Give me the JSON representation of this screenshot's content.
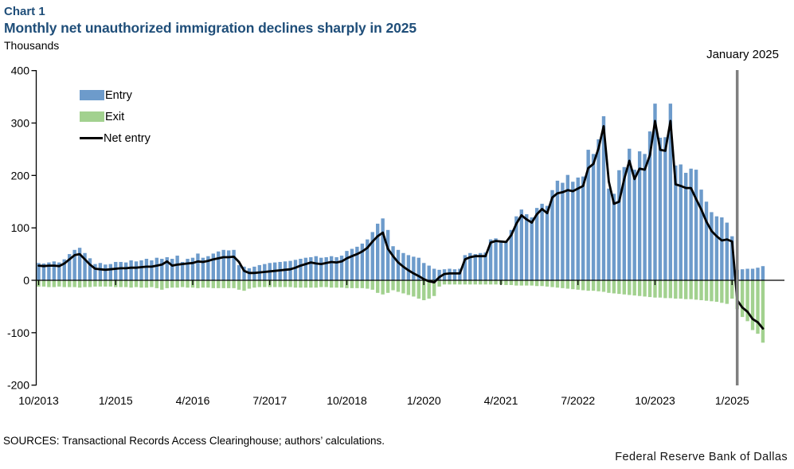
{
  "header": {
    "chart_label": "Chart 1",
    "title": "Monthly net unauthorized immigration declines sharply in 2025",
    "units_label": "Thousands",
    "title_color": "#1F4E79"
  },
  "annotation": {
    "label": "January 2025",
    "line_month_index": 136,
    "line_color": "#7F7F7F"
  },
  "footer": {
    "sources": "SOURCES: Transactional Records Access Clearinghouse; authors’ calculations.",
    "brand": "Federal Reserve Bank of Dallas"
  },
  "chart_data": {
    "type": "bar",
    "subtype": "monthly stacked entry/exit bars with net line overlay",
    "title": "Monthly net unauthorized immigration declines sharply in 2025",
    "ylabel": "Thousands",
    "ylim": [
      -200,
      400
    ],
    "y_ticks": [
      400,
      300,
      200,
      100,
      0,
      -100,
      -200
    ],
    "x_start_month": "10/2013",
    "x_end_month": "7/2025",
    "x_ticks": [
      {
        "label": "10/2013",
        "m": 0
      },
      {
        "label": "1/2015",
        "m": 15
      },
      {
        "label": "4/2016",
        "m": 30
      },
      {
        "label": "7/2017",
        "m": 45
      },
      {
        "label": "10/2018",
        "m": 60
      },
      {
        "label": "1/2020",
        "m": 75
      },
      {
        "label": "4/2021",
        "m": 90
      },
      {
        "label": "7/2022",
        "m": 105
      },
      {
        "label": "10/2023",
        "m": 120
      },
      {
        "label": "1/2025",
        "m": 135
      }
    ],
    "series": {
      "entry": {
        "label": "Entry",
        "color": "#6D9BCB",
        "values": [
          33,
          32,
          34,
          36,
          34,
          40,
          50,
          58,
          62,
          52,
          42,
          31,
          33,
          30,
          31,
          35,
          35,
          34,
          38,
          36,
          38,
          41,
          38,
          43,
          41,
          44,
          41,
          47,
          35,
          41,
          43,
          51,
          43,
          46,
          51,
          55,
          58,
          57,
          58,
          29,
          26,
          23,
          26,
          29,
          31,
          33,
          34,
          35,
          36,
          37,
          39,
          41,
          43,
          44,
          46,
          43,
          44,
          46,
          44,
          47,
          56,
          60,
          64,
          70,
          78,
          92,
          108,
          118,
          96,
          65,
          58,
          52,
          48,
          45,
          43,
          33,
          28,
          22,
          20,
          21,
          22,
          21,
          22,
          48,
          52,
          50,
          52,
          53,
          78,
          80,
          76,
          75,
          96,
          122,
          135,
          126,
          120,
          138,
          146,
          142,
          172,
          190,
          186,
          201,
          188,
          196,
          198,
          249,
          241,
          269,
          313,
          175,
          165,
          210,
          216,
          251,
          211,
          246,
          241,
          284,
          337,
          272,
          273,
          337,
          219,
          221,
          205,
          213,
          211,
          173,
          150,
          130,
          122,
          120,
          110,
          84,
          20,
          21,
          22,
          22,
          24,
          27
        ]
      },
      "exit": {
        "label": "Exit",
        "color": "#A2D18F",
        "values": [
          -12,
          -12,
          -13,
          -13,
          -12,
          -13,
          -13,
          -13,
          -14,
          -13,
          -13,
          -12,
          -12,
          -12,
          -12,
          -13,
          -13,
          -13,
          -14,
          -13,
          -14,
          -14,
          -13,
          -15,
          -18,
          -15,
          -14,
          -14,
          -13,
          -14,
          -14,
          -15,
          -14,
          -14,
          -15,
          -15,
          -15,
          -15,
          -15,
          -18,
          -20,
          -16,
          -14,
          -13,
          -13,
          -13,
          -13,
          -13,
          -13,
          -13,
          -14,
          -14,
          -14,
          -14,
          -14,
          -13,
          -13,
          -14,
          -14,
          -14,
          -15,
          -15,
          -15,
          -15,
          -16,
          -18,
          -24,
          -27,
          -24,
          -19,
          -22,
          -25,
          -28,
          -31,
          -35,
          -38,
          -35,
          -30,
          -12,
          -8,
          -8,
          -8,
          -8,
          -8,
          -8,
          -8,
          -8,
          -8,
          -8,
          -8,
          -8,
          -9,
          -9,
          -10,
          -10,
          -10,
          -10,
          -11,
          -11,
          -12,
          -13,
          -14,
          -15,
          -16,
          -17,
          -18,
          -19,
          -20,
          -20,
          -21,
          -22,
          -24,
          -25,
          -26,
          -27,
          -28,
          -29,
          -30,
          -31,
          -32,
          -33,
          -33,
          -34,
          -34,
          -35,
          -35,
          -36,
          -36,
          -37,
          -38,
          -39,
          -40,
          -41,
          -43,
          -45,
          -35,
          -55,
          -70,
          -78,
          -95,
          -102,
          -119
        ]
      },
      "net_entry": {
        "label": "Net entry",
        "color": "#000000",
        "values": [
          28,
          27,
          28,
          28,
          27,
          32,
          40,
          48,
          50,
          40,
          30,
          22,
          21,
          20,
          21,
          22,
          23,
          23,
          24,
          24,
          25,
          26,
          26,
          28,
          30,
          36,
          28,
          30,
          31,
          32,
          33,
          36,
          35,
          37,
          40,
          42,
          44,
          44,
          45,
          35,
          18,
          14,
          14,
          15,
          16,
          17,
          18,
          19,
          20,
          21,
          24,
          28,
          31,
          34,
          32,
          31,
          33,
          35,
          34,
          36,
          42,
          46,
          50,
          55,
          62,
          74,
          84,
          91,
          60,
          46,
          34,
          26,
          19,
          13,
          8,
          2,
          -2,
          -4,
          6,
          12,
          13,
          13,
          13,
          40,
          44,
          46,
          46,
          46,
          72,
          75,
          74,
          73,
          86,
          108,
          124,
          116,
          110,
          126,
          136,
          128,
          158,
          166,
          168,
          172,
          170,
          175,
          180,
          214,
          222,
          252,
          294,
          188,
          146,
          150,
          193,
          228,
          193,
          213,
          211,
          239,
          304,
          249,
          247,
          304,
          183,
          180,
          176,
          176,
          155,
          135,
          112,
          94,
          84,
          76,
          78,
          74,
          -38,
          -52,
          -60,
          -74,
          -80,
          -92
        ]
      }
    },
    "grid": false,
    "legend_position": "upper-left-inside"
  }
}
